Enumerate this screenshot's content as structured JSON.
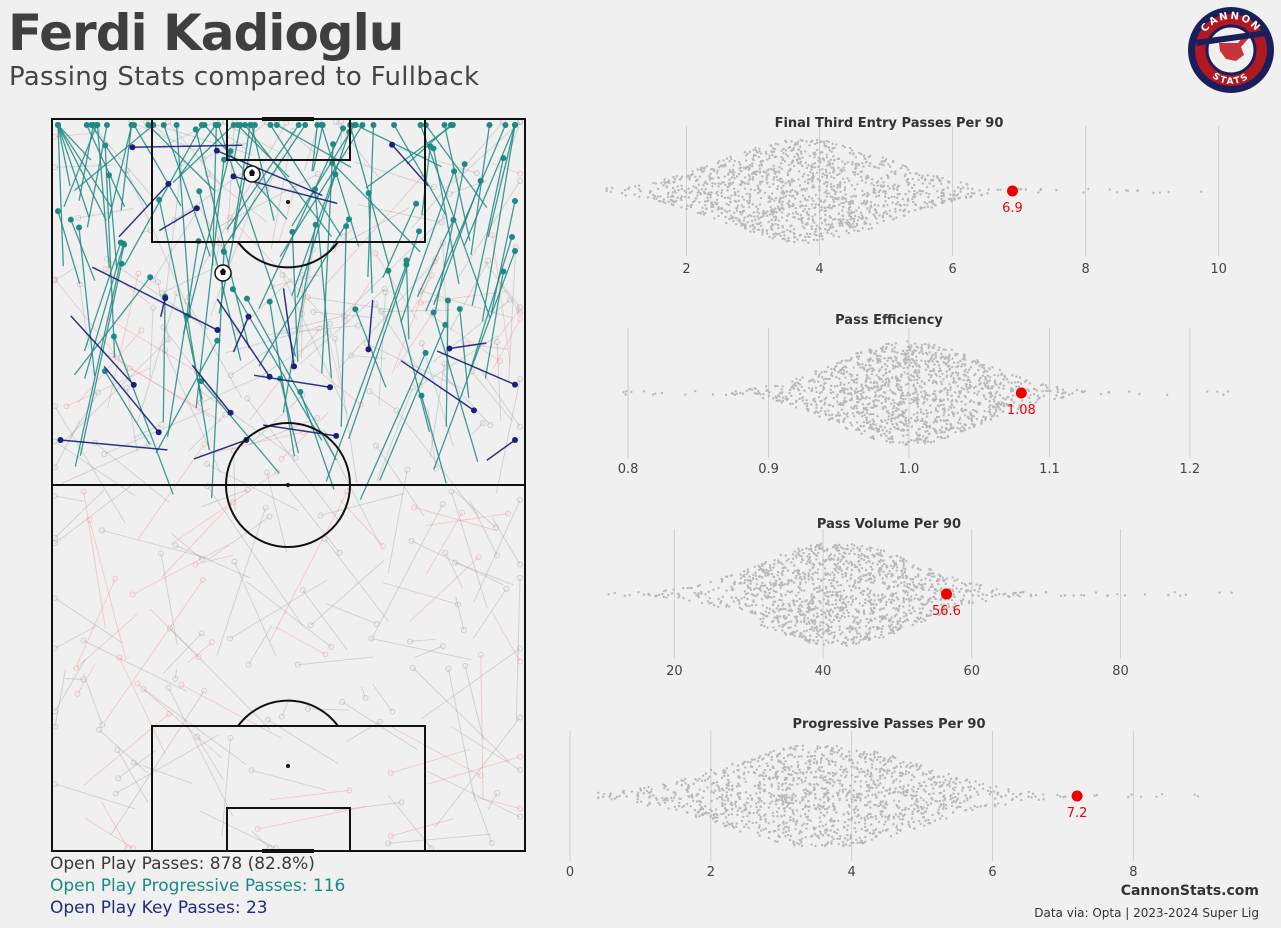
{
  "header": {
    "title": "Ferdi Kadioglu",
    "subtitle": "Passing Stats compared to Fullback"
  },
  "logo": {
    "top_text": "CANNON",
    "bottom_text": "STATS"
  },
  "legend": {
    "all_passes": "Open Play Passes: 878 (82.8%)",
    "progressive": "Open Play Progressive Passes: 116",
    "key": "Open Play Key Passes: 23"
  },
  "footer": {
    "site": "CannonStats.com",
    "source": "Data via: Opta | 2023-2024 Super Lig"
  },
  "colors": {
    "background": "#f0f0f0",
    "progressive": "#1f8a84",
    "key": "#1b1f7a",
    "highlight": "#ee0000",
    "swarm": "#b8b8b8"
  },
  "chart_data": [
    {
      "type": "scatter",
      "title": "Final Third Entry Passes Per 90",
      "player_value": 6.9,
      "player_label": "6.9",
      "x_ticks": [
        "2",
        "4",
        "6",
        "8",
        "10"
      ],
      "tick_values": [
        2,
        4,
        6,
        8,
        10
      ],
      "xlim": [
        0.7,
        10.2
      ],
      "distribution": {
        "center": 3.8,
        "spread": 1.1,
        "min": 0.8,
        "max": 9.9
      },
      "grid": true
    },
    {
      "type": "scatter",
      "title": "Pass Efficiency",
      "player_value": 1.08,
      "player_label": "1.08",
      "x_ticks": [
        "0.8",
        "0.9",
        "1.0",
        "1.1",
        "1.2"
      ],
      "tick_values": [
        0.8,
        0.9,
        1.0,
        1.1,
        1.2
      ],
      "xlim": [
        0.78,
        1.23
      ],
      "distribution": {
        "center": 1.0,
        "spread": 0.045,
        "min": 0.79,
        "max": 1.23
      },
      "grid": true
    },
    {
      "type": "scatter",
      "title": "Pass Volume Per 90",
      "player_value": 56.6,
      "player_label": "56.6",
      "x_ticks": [
        "20",
        "40",
        "60",
        "80"
      ],
      "tick_values": [
        20,
        40,
        60,
        80
      ],
      "xlim": [
        10,
        95
      ],
      "distribution": {
        "center": 42,
        "spread": 9,
        "min": 10,
        "max": 95
      },
      "grid": true
    },
    {
      "type": "scatter",
      "title": "Progressive Passes Per 90",
      "player_value": 7.2,
      "player_label": "7.2",
      "x_ticks": [
        "0",
        "2",
        "4",
        "6",
        "8"
      ],
      "tick_values": [
        0,
        2,
        4,
        6,
        8
      ],
      "xlim": [
        0,
        9.4
      ],
      "distribution": {
        "center": 3.6,
        "spread": 1.2,
        "min": 0.4,
        "max": 9.3
      },
      "grid": true
    }
  ]
}
